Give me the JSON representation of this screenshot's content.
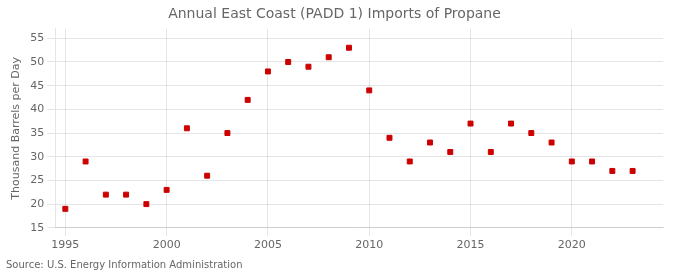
{
  "chart_data": {
    "type": "scatter",
    "title": "Annual East Coast (PADD 1) Imports of Propane",
    "ylabel": "Thousand Barrels per Day",
    "source": "Source: U.S. Energy Information Administration",
    "x": [
      1995,
      1996,
      1997,
      1998,
      1999,
      2000,
      2001,
      2002,
      2003,
      2004,
      2005,
      2006,
      2007,
      2008,
      2009,
      2010,
      2011,
      2012,
      2013,
      2014,
      2015,
      2016,
      2017,
      2018,
      2019,
      2020,
      2021,
      2022,
      2023
    ],
    "values": [
      19,
      29,
      22,
      22,
      20,
      23,
      36,
      26,
      35,
      42,
      48,
      50,
      49,
      51,
      53,
      44,
      34,
      29,
      33,
      31,
      37,
      31,
      37,
      35,
      33,
      29,
      29,
      27,
      27
    ],
    "color": "#cc0000",
    "marker": "square",
    "xlim": [
      1994.5,
      2024.5
    ],
    "xticks": [
      1995,
      2000,
      2005,
      2010,
      2015,
      2020
    ],
    "ylim": [
      15,
      57
    ],
    "yticks": [
      15,
      20,
      25,
      30,
      35,
      40,
      45,
      50,
      55
    ],
    "grid": true
  }
}
